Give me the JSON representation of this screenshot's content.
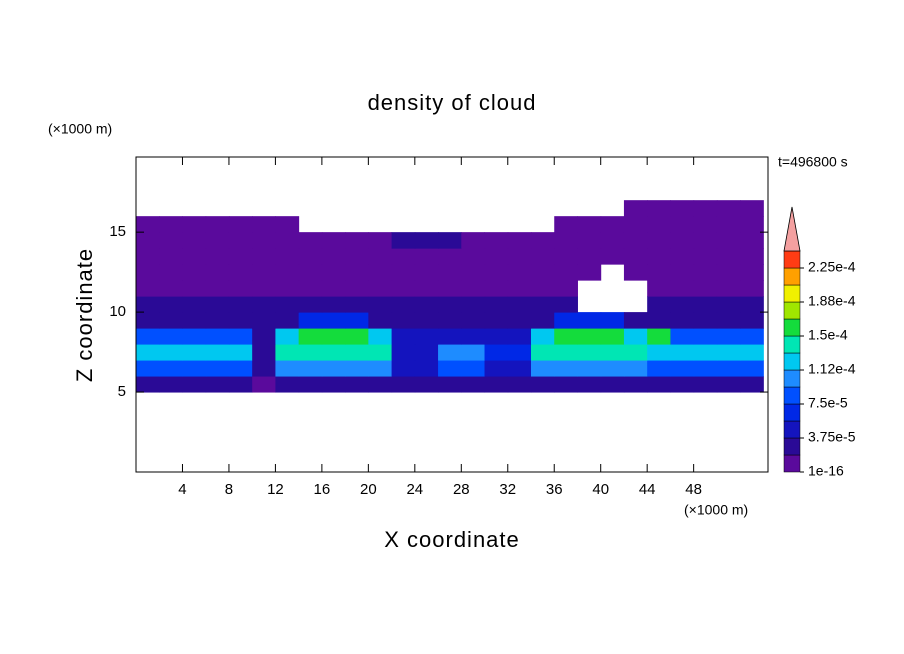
{
  "chart_data": {
    "type": "contour",
    "title": "density of cloud",
    "x_label": "X coordinate",
    "y_label": "Z coordinate",
    "x_unit": "(×1000 m)",
    "y_unit": "(×1000 m)",
    "annotation": "t=496800 s",
    "xlim": [
      0,
      54.4
    ],
    "ylim": [
      0,
      19.7
    ],
    "xticks": [
      4,
      8,
      12,
      16,
      20,
      24,
      28,
      32,
      36,
      40,
      44,
      48
    ],
    "yticks": [
      5,
      10,
      15
    ],
    "x": [
      1,
      3,
      5,
      7,
      9,
      11,
      13,
      15,
      17,
      19,
      21,
      23,
      25,
      27,
      29,
      31,
      33,
      35,
      37,
      39,
      41,
      43,
      45,
      47,
      49,
      51,
      53
    ],
    "y": [
      5.5,
      6.5,
      7.5,
      8.5,
      9.5,
      10.5,
      11.5,
      12.5,
      13.5,
      14.5,
      15.5,
      16.5
    ],
    "z": [
      [
        2.5e-05,
        2.5e-05,
        2.5e-05,
        2.5e-05,
        2.5e-05,
        1e-05,
        2.5e-05,
        2.5e-05,
        2.5e-05,
        2.5e-05,
        2.5e-05,
        2.5e-05,
        2.5e-05,
        2.5e-05,
        2.5e-05,
        2.5e-05,
        2.5e-05,
        2.5e-05,
        2.5e-05,
        2.5e-05,
        2.5e-05,
        2.5e-05,
        2.5e-05,
        2.5e-05,
        2.5e-05,
        2.5e-05,
        2.5e-05
      ],
      [
        8e-05,
        8e-05,
        8e-05,
        8e-05,
        8e-05,
        3e-05,
        0.0001,
        0.0001,
        0.0001,
        0.0001,
        0.0001,
        4.5e-05,
        4.5e-05,
        9e-05,
        9e-05,
        5e-05,
        5e-05,
        0.0001,
        0.0001,
        0.0001,
        0.0001,
        0.0001,
        8e-05,
        8e-05,
        8e-05,
        8e-05,
        8e-05
      ],
      [
        0.00012,
        0.00012,
        0.00012,
        0.00012,
        0.00012,
        3e-05,
        0.000135,
        0.000135,
        0.000135,
        0.000135,
        0.000135,
        4e-05,
        4e-05,
        0.00011,
        0.00011,
        6e-05,
        6e-05,
        0.00014,
        0.00014,
        0.00014,
        0.00014,
        0.00014,
        0.000115,
        0.000115,
        0.000115,
        0.000115,
        0.000115
      ],
      [
        9e-05,
        9e-05,
        9e-05,
        9e-05,
        9e-05,
        2.5e-05,
        0.00012,
        0.00016,
        0.00016,
        0.00016,
        0.00012,
        4e-05,
        4e-05,
        4e-05,
        4e-05,
        4e-05,
        4e-05,
        0.00012,
        0.00016,
        0.00016,
        0.00016,
        0.00012,
        0.000155,
        9e-05,
        9e-05,
        9e-05,
        9e-05
      ],
      [
        3e-05,
        3e-05,
        3e-05,
        3e-05,
        3e-05,
        3e-05,
        3e-05,
        6e-05,
        6e-05,
        6e-05,
        3e-05,
        3e-05,
        3e-05,
        3e-05,
        3e-05,
        3e-05,
        3e-05,
        3e-05,
        6e-05,
        6e-05,
        6e-05,
        3e-05,
        3e-05,
        3e-05,
        3e-05,
        3e-05,
        3e-05
      ],
      [
        2.5e-05,
        2.5e-05,
        2.5e-05,
        2.5e-05,
        2.5e-05,
        2.5e-05,
        2.5e-05,
        2.5e-05,
        2.5e-05,
        2.5e-05,
        2.5e-05,
        2.5e-05,
        2.5e-05,
        2.5e-05,
        2.5e-05,
        2.5e-05,
        2.5e-05,
        2.5e-05,
        2.5e-05,
        null,
        null,
        null,
        2.5e-05,
        2.5e-05,
        2.5e-05,
        2.5e-05,
        2.5e-05
      ],
      [
        1.5e-05,
        1.5e-05,
        1.5e-05,
        1.5e-05,
        1.5e-05,
        1.5e-05,
        1.5e-05,
        1.5e-05,
        1.5e-05,
        1.5e-05,
        1.5e-05,
        1.5e-05,
        1.5e-05,
        1.5e-05,
        1.5e-05,
        1.5e-05,
        1.5e-05,
        1.5e-05,
        1.5e-05,
        null,
        null,
        null,
        1.5e-05,
        1.5e-05,
        1.5e-05,
        1.5e-05,
        1.5e-05
      ],
      [
        1.5e-05,
        1.5e-05,
        1.5e-05,
        1.5e-05,
        1.5e-05,
        1.5e-05,
        1.5e-05,
        1.5e-05,
        1.5e-05,
        1.5e-05,
        1.5e-05,
        1.5e-05,
        1.5e-05,
        1.5e-05,
        1.5e-05,
        1.5e-05,
        1.5e-05,
        1.5e-05,
        1.5e-05,
        1.5e-05,
        null,
        1.5e-05,
        1.5e-05,
        1.5e-05,
        1.5e-05,
        1.5e-05,
        1.5e-05
      ],
      [
        5e-06,
        5e-06,
        5e-06,
        5e-06,
        5e-06,
        5e-06,
        5e-06,
        5e-06,
        5e-06,
        5e-06,
        5e-06,
        5e-06,
        5e-06,
        5e-06,
        5e-06,
        5e-06,
        5e-06,
        5e-06,
        5e-06,
        5e-06,
        5e-06,
        5e-06,
        5e-06,
        5e-06,
        5e-06,
        5e-06,
        5e-06
      ],
      [
        5e-06,
        5e-06,
        5e-06,
        5e-06,
        5e-06,
        5e-06,
        5e-06,
        5e-06,
        5e-06,
        5e-06,
        5e-06,
        2e-05,
        2e-05,
        2e-05,
        5e-06,
        5e-06,
        5e-06,
        5e-06,
        5e-06,
        5e-06,
        5e-06,
        5e-06,
        5e-06,
        5e-06,
        5e-06,
        5e-06,
        5e-06
      ],
      [
        5e-06,
        5e-06,
        5e-06,
        5e-06,
        5e-06,
        5e-06,
        5e-06,
        null,
        null,
        null,
        null,
        null,
        null,
        null,
        null,
        null,
        null,
        null,
        5e-06,
        5e-06,
        5e-06,
        5e-06,
        5e-06,
        5e-06,
        5e-06,
        5e-06,
        5e-06
      ],
      [
        null,
        null,
        null,
        null,
        null,
        null,
        null,
        null,
        null,
        null,
        null,
        null,
        null,
        null,
        null,
        null,
        null,
        null,
        null,
        null,
        null,
        5e-06,
        5e-06,
        5e-06,
        5e-06,
        5e-06,
        5e-06
      ]
    ],
    "levels": [
      1e-16,
      1.875e-05,
      3.75e-05,
      5.625e-05,
      7.5e-05,
      9.375e-05,
      0.0001125,
      0.00013125,
      0.00015,
      0.00016875,
      0.0001875,
      0.00020625,
      0.000225,
      0.00024375
    ],
    "colors": [
      "#5a0a9c",
      "#2a0a96",
      "#1414be",
      "#0028e6",
      "#0050ff",
      "#1e8cff",
      "#00c8f0",
      "#00e6b4",
      "#14dc3c",
      "#a0e600",
      "#f0f000",
      "#ffa000",
      "#ff3c14"
    ],
    "extend_color": "#f4a0a0",
    "colorbar_ticks": [
      {
        "value": 1e-16,
        "label": "1e-16"
      },
      {
        "value": 3.75e-05,
        "label": "3.75e-5"
      },
      {
        "value": 7.5e-05,
        "label": "7.5e-5"
      },
      {
        "value": 0.0001125,
        "label": "1.12e-4"
      },
      {
        "value": 0.00015,
        "label": "1.5e-4"
      },
      {
        "value": 0.0001875,
        "label": "1.88e-4"
      },
      {
        "value": 0.000225,
        "label": "2.25e-4"
      }
    ]
  }
}
